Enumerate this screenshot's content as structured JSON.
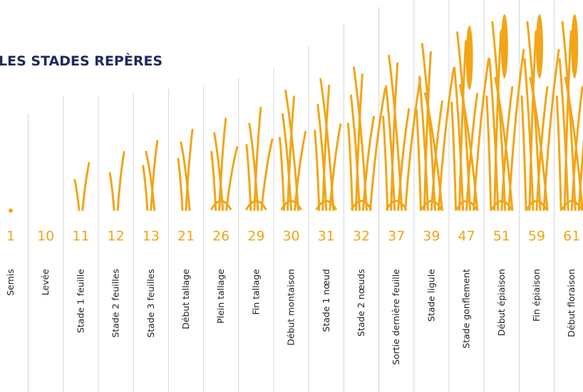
{
  "header": {
    "title": "LES STADES REPÈRES"
  },
  "stages": [
    {
      "code": "1",
      "label": "Semis"
    },
    {
      "code": "10",
      "label": "Levée"
    },
    {
      "code": "11",
      "label": "Stade 1 feuille"
    },
    {
      "code": "12",
      "label": "Stade 2 feuilles"
    },
    {
      "code": "13",
      "label": "Stade 3 feuilles"
    },
    {
      "code": "21",
      "label": "Début tallage"
    },
    {
      "code": "26",
      "label": "Plein tallage"
    },
    {
      "code": "29",
      "label": "Fin tallage"
    },
    {
      "code": "30",
      "label": "Début montaison"
    },
    {
      "code": "31",
      "label": "Stade 1 nœud"
    },
    {
      "code": "32",
      "label": "Stade 2 nœuds"
    },
    {
      "code": "37",
      "label": "Sortie dernière feuille"
    },
    {
      "code": "39",
      "label": "Stade ligule"
    },
    {
      "code": "47",
      "label": "Stade gonflement"
    },
    {
      "code": "51",
      "label": "Début épiaison"
    },
    {
      "code": "59",
      "label": "Fin épiaison"
    },
    {
      "code": "61",
      "label": "Début floraison"
    }
  ]
}
